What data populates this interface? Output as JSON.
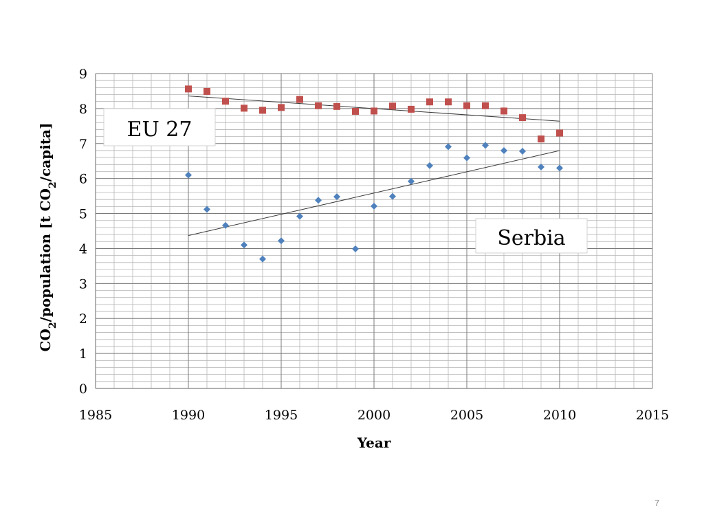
{
  "chart_data": {
    "type": "scatter",
    "xlabel": "Year",
    "ylabel_parts": [
      "CO",
      "2",
      "/population [t CO",
      "2",
      "/capita]"
    ],
    "xlim": [
      1985,
      2015
    ],
    "ylim": [
      0,
      9
    ],
    "xticks": [
      "1985",
      "1990",
      "1995",
      "2000",
      "2005",
      "2010",
      "2015"
    ],
    "yticks": [
      "0",
      "1",
      "2",
      "3",
      "4",
      "5",
      "6",
      "7",
      "8",
      "9"
    ],
    "grid": true,
    "series": [
      {
        "name": "EU 27",
        "marker": "square",
        "color": "#c0504d",
        "x": [
          1990,
          1991,
          1992,
          1993,
          1994,
          1995,
          1996,
          1997,
          1998,
          1999,
          2000,
          2001,
          2002,
          2003,
          2004,
          2005,
          2006,
          2007,
          2008,
          2009,
          2010
        ],
        "y": [
          8.56,
          8.49,
          8.21,
          8.01,
          7.95,
          8.03,
          8.26,
          8.08,
          8.06,
          7.92,
          7.93,
          8.07,
          7.98,
          8.19,
          8.19,
          8.08,
          8.08,
          7.93,
          7.74,
          7.13,
          7.3
        ],
        "trend": [
          [
            1990,
            8.36
          ],
          [
            2010,
            7.64
          ]
        ]
      },
      {
        "name": "Serbia",
        "marker": "diamond",
        "color": "#4f81bd",
        "x": [
          1990,
          1991,
          1992,
          1993,
          1994,
          1995,
          1996,
          1997,
          1998,
          1999,
          2000,
          2001,
          2002,
          2003,
          2004,
          2005,
          2006,
          2007,
          2008,
          2009,
          2010
        ],
        "y": [
          6.1,
          5.12,
          4.66,
          4.1,
          3.7,
          4.22,
          4.92,
          5.38,
          5.48,
          3.99,
          5.21,
          5.49,
          5.92,
          6.37,
          6.91,
          6.59,
          6.95,
          6.8,
          6.78,
          6.33,
          6.3
        ],
        "trend": [
          [
            1990,
            4.37
          ],
          [
            2010,
            6.8
          ]
        ]
      }
    ]
  },
  "slide": {
    "page_number": "7"
  }
}
